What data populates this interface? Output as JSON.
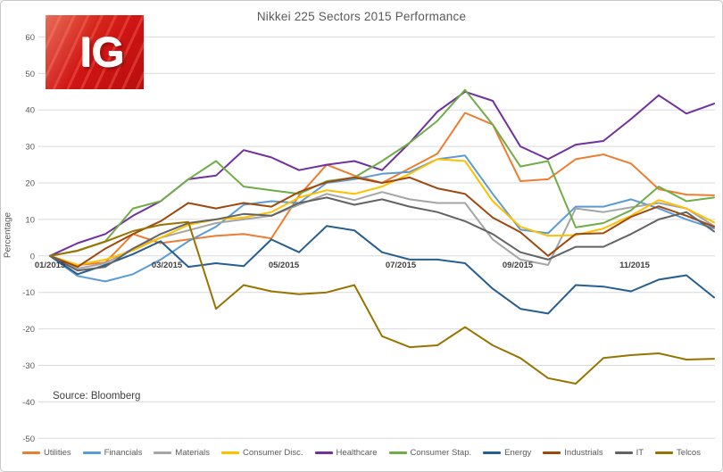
{
  "title": "Nikkei 225 Sectors 2015 Performance",
  "logo": {
    "text": "IG"
  },
  "source_note": "Source: Bloomberg",
  "y_axis": {
    "title": "Percentage"
  },
  "chart_data": {
    "type": "line",
    "title": "Nikkei 225 Sectors 2015 Performance",
    "xlabel": "",
    "ylabel": "Percentage",
    "ylim": [
      -50,
      60
    ],
    "y_ticks": [
      60,
      50,
      40,
      30,
      20,
      10,
      0,
      -10,
      -20,
      -30,
      -40,
      -50
    ],
    "x_labels": [
      "01/2015",
      "03/2015",
      "05/2015",
      "07/2015",
      "09/2015",
      "11/2015"
    ],
    "x_note": "values sampled twice-monthly Jan-Dec 2015, percent change year-to-date",
    "grid": "horizontal-only",
    "legend_position": "bottom",
    "series": [
      {
        "name": "Utilities",
        "color": "#ED7D31",
        "values": [
          0,
          -2.5,
          -1.8,
          6,
          3.5,
          4.5,
          5.5,
          6,
          4.8,
          16.5,
          25,
          22,
          20,
          24,
          28,
          39.2,
          36,
          20.5,
          21,
          26.5,
          27.8,
          25.3,
          18.3,
          16.8,
          16.6
        ]
      },
      {
        "name": "Financials",
        "color": "#5B9BD5",
        "values": [
          0,
          -5.5,
          -7,
          -5,
          -1,
          4,
          8,
          14,
          15,
          14.5,
          20,
          21,
          22.5,
          23,
          26.5,
          27.5,
          17,
          7.2,
          6.2,
          13.5,
          13.5,
          15.5,
          13,
          10,
          7.5
        ]
      },
      {
        "name": "Materials",
        "color": "#A5A5A5",
        "values": [
          0,
          -3.5,
          -2,
          2,
          5,
          7,
          9,
          10,
          11,
          14,
          17,
          15.3,
          17.5,
          15.5,
          14.5,
          14.5,
          4.5,
          -1,
          -2.5,
          13,
          12,
          13.3,
          14.5,
          13,
          8.2
        ]
      },
      {
        "name": "Consumer Disc.",
        "color": "#FFC000",
        "values": [
          0,
          -2.5,
          -1,
          1.5,
          5,
          8.5,
          10,
          10.5,
          12,
          16,
          18,
          17,
          19,
          22.5,
          26.5,
          26,
          15,
          8,
          5.5,
          5.7,
          7.5,
          11,
          15.3,
          13,
          9.2
        ]
      },
      {
        "name": "Healthcare",
        "color": "#7030A0",
        "values": [
          0,
          3.5,
          6,
          11,
          15,
          21,
          22,
          29,
          27,
          23.5,
          25,
          26,
          23.5,
          31,
          39.5,
          45,
          42.5,
          30,
          26.5,
          30.5,
          31.5,
          37.5,
          44,
          39,
          41.7
        ]
      },
      {
        "name": "Consumer Stap.",
        "color": "#70AD47",
        "values": [
          0,
          1.5,
          4,
          13,
          15,
          21,
          26,
          19,
          18,
          17,
          20.5,
          21.5,
          26,
          31,
          37,
          45.5,
          36,
          24.5,
          26,
          7.8,
          9,
          12.5,
          19,
          15,
          16
        ]
      },
      {
        "name": "Energy",
        "color": "#255E91",
        "values": [
          0,
          -5,
          -2.5,
          0.5,
          4,
          -3,
          -2,
          -2.8,
          4.5,
          1,
          8.2,
          7,
          1,
          -1,
          -1,
          -2,
          -9,
          -14.5,
          -15.8,
          -8,
          -8.4,
          -9.7,
          -6.5,
          -5.3,
          -11.4
        ]
      },
      {
        "name": "Industrials",
        "color": "#9E480E",
        "values": [
          0,
          -3,
          2,
          6,
          9.5,
          14.5,
          13,
          14.5,
          13.5,
          17.5,
          20.2,
          21.5,
          20,
          21.5,
          18.5,
          17,
          10.5,
          6.5,
          0,
          6,
          6.2,
          10.7,
          13.6,
          11,
          8
        ]
      },
      {
        "name": "IT",
        "color": "#636363",
        "values": [
          0,
          -4,
          -3,
          2,
          6,
          9,
          10,
          11.5,
          11,
          14.5,
          16,
          14,
          15.5,
          13.5,
          12,
          9.5,
          6,
          1,
          -1,
          2.5,
          2.5,
          6,
          10,
          12,
          6.7
        ]
      },
      {
        "name": "Telcos",
        "color": "#997300",
        "values": [
          0,
          1.4,
          3.9,
          6.8,
          8.5,
          9.3,
          -14.5,
          -8,
          -9.7,
          -10.5,
          -10,
          -8,
          -22,
          -25,
          -24.5,
          -19.5,
          -24.5,
          -28,
          -33.5,
          -35,
          -28,
          -27.2,
          -26.7,
          -28.4,
          -28.2
        ]
      }
    ]
  }
}
